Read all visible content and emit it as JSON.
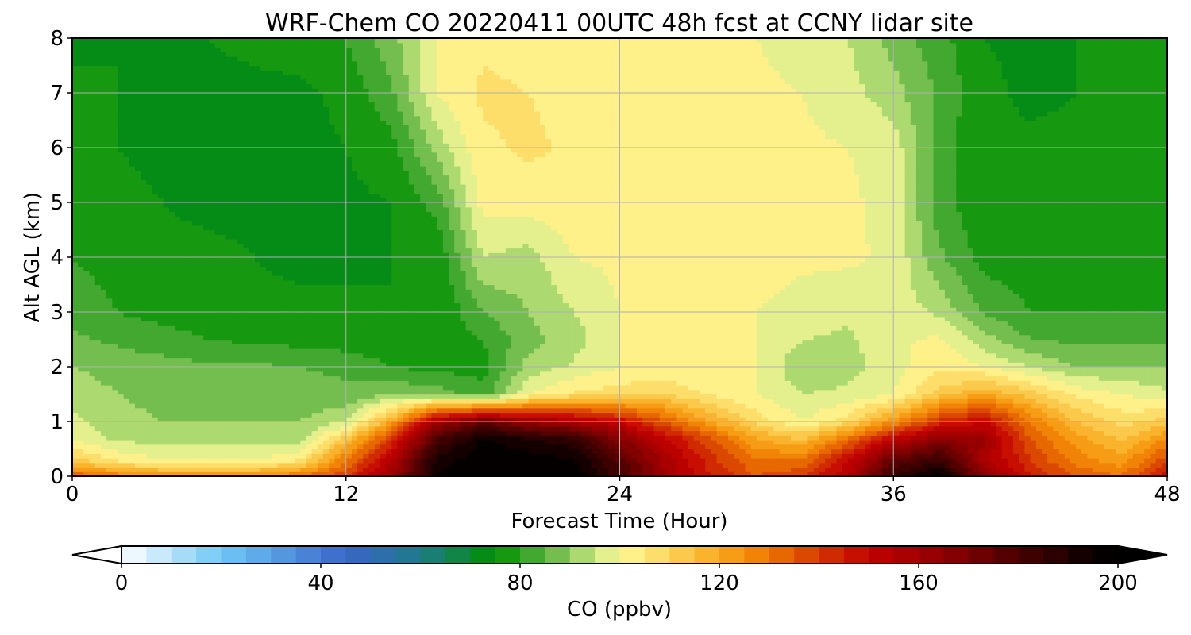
{
  "chart_data": {
    "type": "heatmap",
    "title": "WRF-Chem CO  20220411 00UTC 48h fcst at CCNY lidar site",
    "xlabel": "Forecast Time (Hour)",
    "ylabel": "Alt AGL (km)",
    "xlim": [
      0,
      48
    ],
    "ylim": [
      0,
      8
    ],
    "xticks": [
      0,
      12,
      24,
      36,
      48
    ],
    "yticks": [
      0,
      1,
      2,
      3,
      4,
      5,
      6,
      7,
      8
    ],
    "grid": true,
    "colorbar": {
      "label": "CO  (ppbv)",
      "min": 0,
      "max": 200,
      "ticks": [
        0,
        40,
        80,
        120,
        160,
        200
      ],
      "extend": "both",
      "stops": [
        {
          "v": 0,
          "c": "#ffffff"
        },
        {
          "v": 20,
          "c": "#6fc8f5"
        },
        {
          "v": 45,
          "c": "#3a66c8"
        },
        {
          "v": 60,
          "c": "#1f7a8a"
        },
        {
          "v": 75,
          "c": "#009000"
        },
        {
          "v": 85,
          "c": "#58b040"
        },
        {
          "v": 95,
          "c": "#c8e680"
        },
        {
          "v": 100,
          "c": "#fffa9a"
        },
        {
          "v": 110,
          "c": "#fcd45a"
        },
        {
          "v": 120,
          "c": "#f8a81c"
        },
        {
          "v": 130,
          "c": "#ee7800"
        },
        {
          "v": 140,
          "c": "#d43800"
        },
        {
          "v": 150,
          "c": "#c40000"
        },
        {
          "v": 165,
          "c": "#8e0000"
        },
        {
          "v": 180,
          "c": "#4a0000"
        },
        {
          "v": 195,
          "c": "#0a0000"
        },
        {
          "v": 200,
          "c": "#000000"
        }
      ]
    },
    "field": {
      "description_units": "CO mixing ratio in ppbv",
      "hours": [
        0,
        2,
        4,
        6,
        8,
        10,
        12,
        14,
        16,
        18,
        20,
        22,
        24,
        26,
        28,
        30,
        32,
        34,
        36,
        38,
        40,
        42,
        44,
        46,
        48
      ],
      "altitudes_km": [
        0,
        0.3,
        0.7,
        1.0,
        1.5,
        2.0,
        2.5,
        3.0,
        4.0,
        5.0,
        6.0,
        7.0,
        8.0
      ],
      "values": [
        [
          135,
          128,
          125,
          125,
          125,
          130,
          140,
          160,
          196,
          200,
          200,
          200,
          182,
          160,
          145,
          135,
          140,
          155,
          185,
          198,
          165,
          145,
          135,
          130,
          150
        ],
        [
          112,
          104,
          100,
          100,
          100,
          105,
          130,
          155,
          192,
          200,
          198,
          196,
          178,
          158,
          142,
          130,
          130,
          150,
          175,
          185,
          158,
          140,
          128,
          122,
          138
        ],
        [
          99,
          94,
          92,
          92,
          92,
          92,
          112,
          140,
          180,
          195,
          190,
          185,
          166,
          150,
          136,
          120,
          114,
          130,
          150,
          165,
          160,
          135,
          122,
          114,
          125
        ],
        [
          96,
          92,
          90,
          90,
          90,
          90,
          95,
          120,
          160,
          175,
          162,
          158,
          150,
          135,
          120,
          108,
          100,
          108,
          125,
          142,
          150,
          130,
          115,
          108,
          112
        ],
        [
          93,
          90,
          88,
          88,
          87,
          87,
          86,
          90,
          88,
          82,
          100,
          106,
          108,
          110,
          104,
          100,
          95,
          96,
          100,
          112,
          120,
          112,
          104,
          100,
          96
        ],
        [
          90,
          88,
          87,
          86,
          86,
          85,
          84,
          80,
          78,
          78,
          92,
          96,
          100,
          100,
          100,
          100,
          91,
          93,
          98,
          104,
          100,
          95,
          90,
          90,
          90
        ],
        [
          86,
          84,
          82,
          80,
          79,
          78,
          77,
          76,
          76,
          80,
          88,
          93,
          100,
          102,
          101,
          100,
          95,
          94,
          99,
          101,
          92,
          85,
          84,
          84,
          84
        ],
        [
          83,
          80,
          78,
          77,
          76,
          76,
          76,
          75,
          75,
          85,
          90,
          95,
          100,
          101,
          101,
          100,
          98,
          96,
          98,
          94,
          84,
          80,
          80,
          80,
          80
        ],
        [
          80,
          78,
          76,
          76,
          75,
          74,
          74,
          75,
          76,
          95,
          93,
          100,
          101,
          102,
          102,
          102,
          101,
          101,
          99,
          86,
          78,
          77,
          76,
          76,
          76
        ],
        [
          78,
          76,
          75,
          74,
          74,
          74,
          74,
          75,
          82,
          102,
          102,
          104,
          102,
          103,
          104,
          104,
          102,
          101,
          98,
          82,
          76,
          76,
          76,
          76,
          76
        ],
        [
          77,
          75,
          74,
          74,
          74,
          74,
          75,
          78,
          92,
          104,
          106,
          104,
          103,
          103,
          104,
          103,
          101,
          100,
          98,
          82,
          76,
          76,
          76,
          76,
          78
        ],
        [
          76,
          75,
          74,
          74,
          74,
          74,
          76,
          84,
          100,
          106,
          105,
          103,
          102,
          103,
          102,
          101,
          100,
          97,
          92,
          84,
          76,
          74,
          75,
          76,
          78
        ],
        [
          74,
          75,
          75,
          75,
          76,
          77,
          80,
          88,
          100,
          104,
          103,
          102,
          101,
          101,
          101,
          100,
          98,
          95,
          88,
          82,
          75,
          74,
          75,
          78,
          80
        ]
      ]
    }
  }
}
